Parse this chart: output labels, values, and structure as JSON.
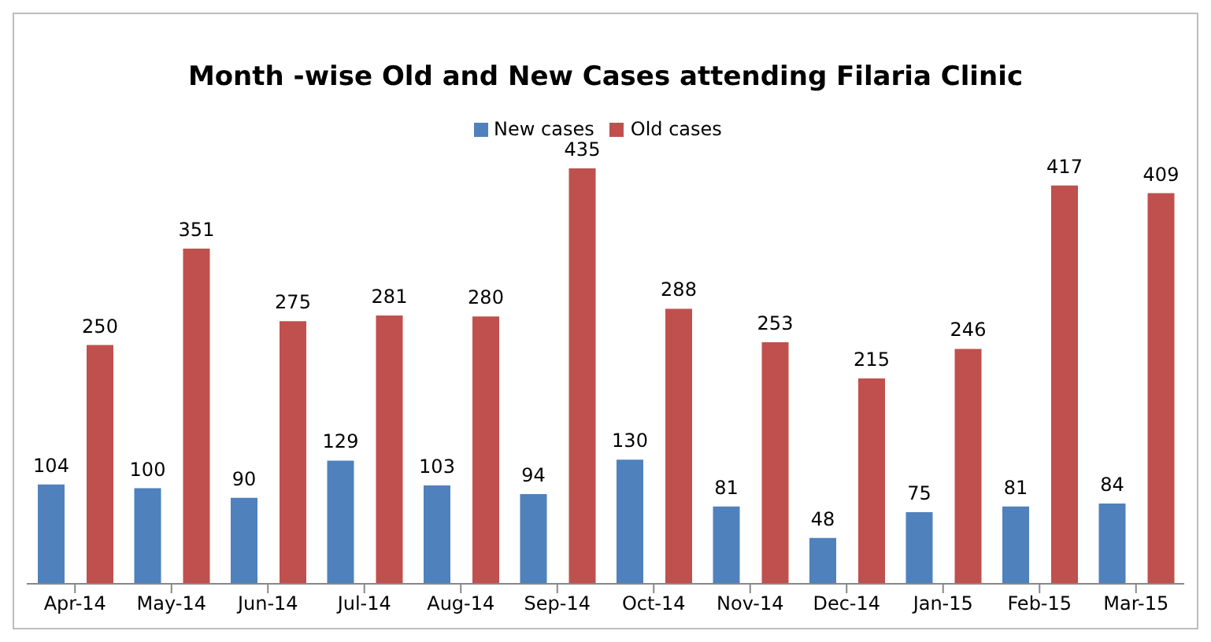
{
  "chart_data": {
    "type": "bar",
    "title": "Month -wise Old and New Cases attending  Filaria Clinic",
    "categories": [
      "Apr-14",
      "May-14",
      "Jun-14",
      "Jul-14",
      "Aug-14",
      "Sep-14",
      "Oct-14",
      "Nov-14",
      "Dec-14",
      "Jan-15",
      "Feb-15",
      "Mar-15"
    ],
    "series": [
      {
        "name": "New cases",
        "color": "#4f81bd",
        "values": [
          104,
          100,
          90,
          129,
          103,
          94,
          130,
          81,
          48,
          75,
          81,
          84
        ]
      },
      {
        "name": "Old cases",
        "color": "#c0504d",
        "values": [
          250,
          351,
          275,
          281,
          280,
          435,
          288,
          253,
          215,
          246,
          417,
          409
        ]
      }
    ],
    "data_labels": true,
    "legend": "top",
    "grid": false
  }
}
